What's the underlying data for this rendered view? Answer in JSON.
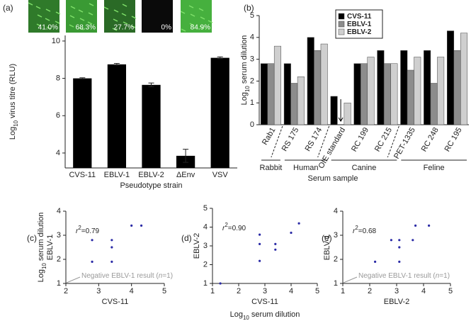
{
  "chart_data": [
    {
      "panel": "(a)",
      "type": "bar",
      "image_labels": [
        "41.0%",
        "68.3%",
        "27.7%",
        "0%",
        "84.9%"
      ],
      "categories": [
        "CVS-11",
        "EBLV-1",
        "EBLV-2",
        "ΔEnv",
        "VSV"
      ],
      "values": [
        8.0,
        8.75,
        7.65,
        3.85,
        9.1
      ],
      "errors": [
        0.03,
        0.05,
        0.1,
        0.35,
        0.05
      ],
      "color": "#000000",
      "ylim": [
        3.2,
        10.3
      ],
      "yticks": [
        4,
        6,
        8,
        10
      ],
      "y_label": [
        "Log",
        "10",
        " virus titre (RLU)"
      ],
      "x_label": "Pseudotype strain"
    },
    {
      "panel": "(b)",
      "type": "grouped_bar",
      "categories": [
        "Rab1",
        "RS 175",
        "RS 174",
        "OIE standard",
        "RC 199",
        "RC 215",
        "PET-1335",
        "RC 248",
        "RC 195"
      ],
      "series": [
        {
          "name": "CVS-11",
          "color": "#000000",
          "values": [
            2.8,
            2.8,
            4.0,
            1.3,
            2.8,
            3.4,
            3.4,
            3.4,
            4.3
          ]
        },
        {
          "name": "EBLV-1",
          "color": "#8c8c8c",
          "values": [
            2.8,
            1.9,
            3.4,
            null,
            2.8,
            2.8,
            2.5,
            1.9,
            3.4
          ]
        },
        {
          "name": "EBLV-2",
          "color": "#cfcfcf",
          "values": [
            3.6,
            2.2,
            3.7,
            1.0,
            3.1,
            2.8,
            3.1,
            3.1,
            4.2
          ]
        }
      ],
      "groups": [
        "Rabbit",
        "Human",
        "Canine",
        "Feline"
      ],
      "ylim": [
        0,
        5
      ],
      "yticks": [
        0,
        1,
        2,
        3,
        4,
        5
      ],
      "y_label": [
        "Log",
        "10",
        " serum dilution"
      ],
      "x_label": "Serum sample",
      "legend": "top-left"
    },
    {
      "panel": "(c)",
      "type": "scatter",
      "color": "#2b2ba6",
      "x": [
        2.8,
        2.8,
        3.4,
        3.4,
        3.4,
        4.0,
        4.3
      ],
      "y": [
        2.8,
        1.9,
        2.8,
        2.5,
        1.9,
        3.4,
        3.4
      ],
      "xlim": [
        2,
        5
      ],
      "ylim": [
        1,
        4
      ],
      "xticks": [
        2,
        3,
        4,
        5
      ],
      "yticks": [
        1,
        2,
        3,
        4
      ],
      "x_label": "CVS-11",
      "y_label": "EBLV-1",
      "y_label_outer": [
        "Log",
        "10",
        " serum dilution"
      ],
      "annotation": [
        "r",
        "2",
        "=0.79"
      ],
      "note": [
        "Negative EBLV-1 result (",
        "n",
        "=1)"
      ]
    },
    {
      "panel": "(d)",
      "type": "scatter",
      "color": "#2b2ba6",
      "x": [
        1.3,
        2.8,
        2.8,
        2.8,
        3.4,
        3.4,
        4.0,
        4.3
      ],
      "y": [
        1.0,
        3.6,
        3.1,
        2.2,
        3.1,
        2.8,
        3.7,
        4.2
      ],
      "xlim": [
        1,
        5
      ],
      "ylim": [
        1,
        5
      ],
      "xticks": [
        1,
        2,
        3,
        4,
        5
      ],
      "yticks": [
        1,
        2,
        3,
        4,
        5
      ],
      "x_label": "CVS-11",
      "y_label": "EBLV-2",
      "x_label_outer": [
        "Log",
        "10",
        " serum dilution"
      ],
      "annotation": [
        "r",
        "2",
        "=0.90"
      ]
    },
    {
      "panel": "(e)",
      "type": "scatter",
      "color": "#2b2ba6",
      "x": [
        2.2,
        2.8,
        3.1,
        3.1,
        3.1,
        3.6,
        3.7,
        4.2
      ],
      "y": [
        1.9,
        2.8,
        2.8,
        2.5,
        1.9,
        2.8,
        3.4,
        3.4
      ],
      "xlim": [
        1,
        5
      ],
      "ylim": [
        1,
        4
      ],
      "xticks": [
        1,
        2,
        3,
        4,
        5
      ],
      "yticks": [
        1,
        2,
        3,
        4
      ],
      "x_label": "EBLV-2",
      "y_label": "EBLV-1",
      "annotation": [
        "r",
        "2",
        "=0.68"
      ],
      "note": [
        "Negative EBLV-1 result (",
        "n",
        "=1)"
      ]
    }
  ]
}
